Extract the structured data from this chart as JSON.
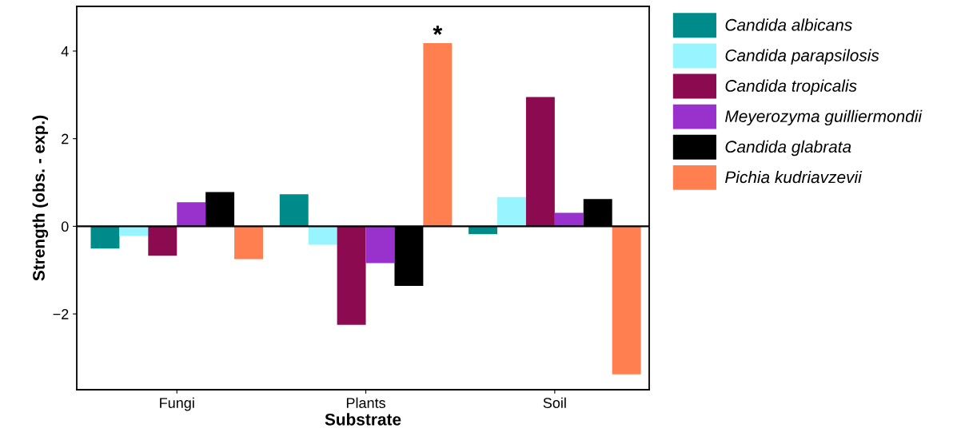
{
  "chart_data": {
    "type": "bar",
    "xlabel": "Substrate",
    "ylabel": "Strength (obs. - exp.)",
    "categories": [
      "Fungi",
      "Plants",
      "Soil"
    ],
    "series": [
      {
        "name": "Candida albicans",
        "color": "#008b8b",
        "values": [
          -0.51,
          0.73,
          -0.18
        ]
      },
      {
        "name": "Candida parapsilosis",
        "color": "#98f5ff",
        "values": [
          -0.22,
          -0.42,
          0.67
        ]
      },
      {
        "name": "Candida tropicalis",
        "color": "#8b0a50",
        "values": [
          -0.67,
          -2.25,
          2.95
        ]
      },
      {
        "name": "Meyerozyma guilliermondii",
        "color": "#9932cc",
        "values": [
          0.55,
          -0.84,
          0.31
        ]
      },
      {
        "name": "Candida glabrata",
        "color": "#000000",
        "values": [
          0.78,
          -1.36,
          0.62
        ]
      },
      {
        "name": "Pichia kudriavzevii",
        "color": "#ff7f50",
        "values": [
          -0.75,
          4.18,
          -3.38
        ]
      }
    ],
    "ylim": [
      -3.73,
      5.02
    ],
    "yticks": [
      {
        "value": -2,
        "label": "−2"
      },
      0,
      2,
      4
    ],
    "ref_lines": [
      {
        "axis": "y",
        "value": 0,
        "color": "#000000"
      }
    ],
    "annotations": [
      "*"
    ],
    "legend": "right",
    "grid": false
  }
}
